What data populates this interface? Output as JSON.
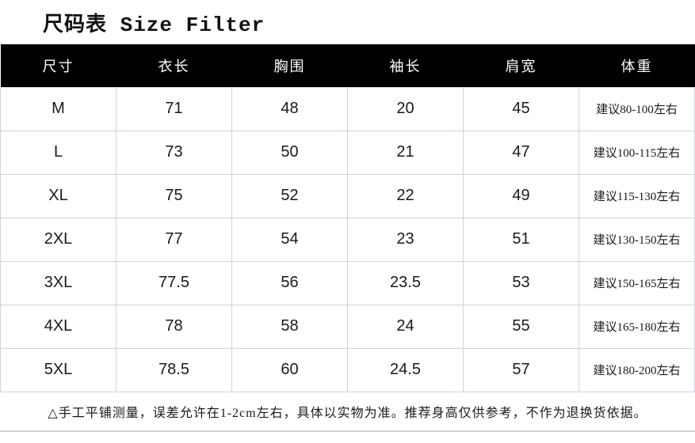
{
  "page": {
    "title": "尺码表 Size Filter"
  },
  "colors": {
    "header_bg": "#000000",
    "header_text": "#ffffff",
    "border": "#ccd5e2",
    "text": "#1a1a1a"
  },
  "table": {
    "headers": [
      "尺寸",
      "衣长",
      "胸围",
      "袖长",
      "肩宽",
      "体重"
    ],
    "rows": [
      [
        "M",
        "71",
        "48",
        "20",
        "45",
        "建议80-100左右"
      ],
      [
        "L",
        "73",
        "50",
        "21",
        "47",
        "建议100-115左右"
      ],
      [
        "XL",
        "75",
        "52",
        "22",
        "49",
        "建议115-130左右"
      ],
      [
        "2XL",
        "77",
        "54",
        "23",
        "51",
        "建议130-150左右"
      ],
      [
        "3XL",
        "77.5",
        "56",
        "23.5",
        "53",
        "建议150-165左右"
      ],
      [
        "4XL",
        "78",
        "58",
        "24",
        "55",
        "建议165-180左右"
      ],
      [
        "5XL",
        "78.5",
        "60",
        "24.5",
        "57",
        "建议180-200左右"
      ]
    ]
  },
  "footer": {
    "note": "△手工平铺测量，误差允许在1-2cm左右，具体以实物为准。推荐身高仅供参考，不作为退换货依据。"
  }
}
